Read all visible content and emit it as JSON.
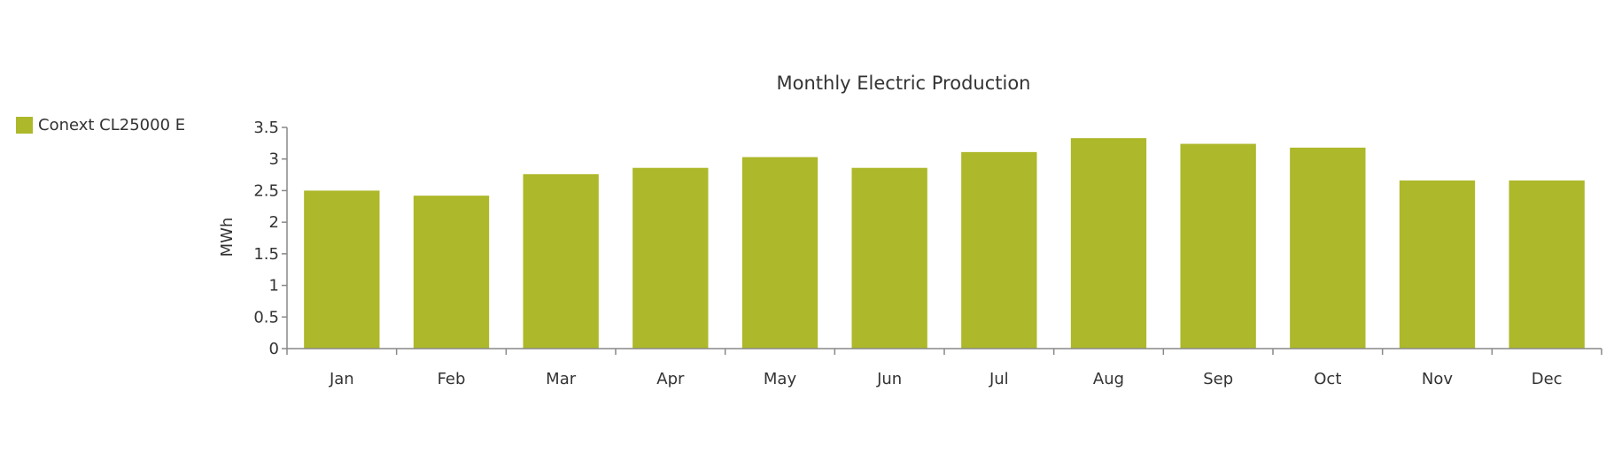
{
  "chart_data": {
    "type": "bar",
    "title": "Monthly Electric Production",
    "xlabel": "",
    "ylabel": "MWh",
    "categories": [
      "Jan",
      "Feb",
      "Mar",
      "Apr",
      "May",
      "Jun",
      "Jul",
      "Aug",
      "Sep",
      "Oct",
      "Nov",
      "Dec"
    ],
    "series": [
      {
        "name": "Conext CL25000 E",
        "color": "#adb82a",
        "values": [
          2.5,
          2.42,
          2.76,
          2.86,
          3.03,
          2.86,
          3.11,
          3.33,
          3.24,
          3.18,
          2.66,
          2.66
        ]
      }
    ],
    "ylim": [
      0,
      3.5
    ],
    "yticks": [
      "0",
      "0.5",
      "1",
      "1.5",
      "2",
      "2.5",
      "3",
      "3.5"
    ],
    "grid": false,
    "legend": "top-left"
  }
}
